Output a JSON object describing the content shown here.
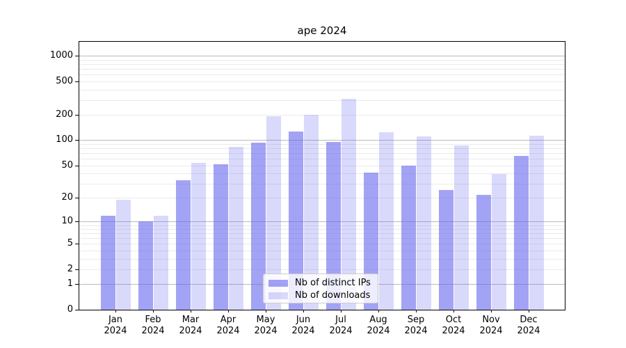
{
  "chart_data": {
    "type": "bar",
    "title": "ape 2024",
    "categories": [
      "Jan",
      "Feb",
      "Mar",
      "Apr",
      "May",
      "Jun",
      "Jul",
      "Aug",
      "Sep",
      "Oct",
      "Nov",
      "Dec"
    ],
    "category_year": "2024",
    "series": [
      {
        "name": "Nb of distinct IPs",
        "color": "#6666ee",
        "alpha": 0.6,
        "values": [
          12,
          10,
          33,
          52,
          94,
          127,
          95,
          41,
          50,
          25,
          22,
          65
        ]
      },
      {
        "name": "Nb of downloads",
        "color": "#6666ee",
        "alpha": 0.25,
        "values": [
          19,
          12,
          54,
          84,
          193,
          200,
          310,
          124,
          112,
          87,
          39,
          114
        ]
      }
    ],
    "xlabel": "",
    "ylabel": "",
    "yscale": "log1p",
    "ylim": [
      0,
      1472
    ],
    "yticks": [
      0,
      1,
      2,
      5,
      10,
      20,
      50,
      100,
      200,
      500,
      1000
    ],
    "grid": {
      "major": [
        1,
        10,
        100,
        1000
      ],
      "minor": [
        2,
        3,
        4,
        5,
        6,
        7,
        8,
        9,
        20,
        30,
        40,
        50,
        60,
        70,
        80,
        90,
        200,
        300,
        400,
        500,
        600,
        700,
        800,
        900
      ],
      "major_color": "#b9b9b9",
      "minor_color": "#eaeaea"
    },
    "legend": {
      "position": "lower center"
    },
    "colors": {
      "axis": "#000000",
      "text": "#000000",
      "background": "#ffffff"
    }
  }
}
